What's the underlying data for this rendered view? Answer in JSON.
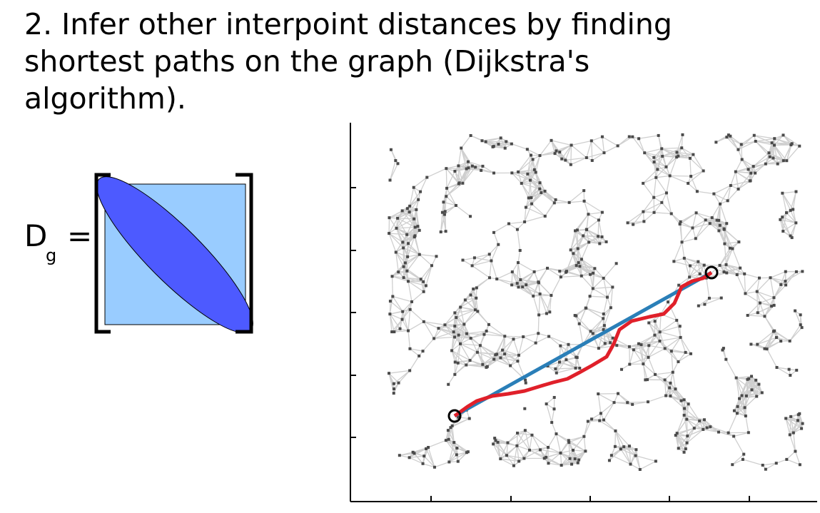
{
  "title": {
    "lines": [
      "2. Infer other interpoint distances by finding",
      "shortest paths on the graph (Dijkstra's",
      "algorithm)."
    ]
  },
  "equation": {
    "symbol": "D",
    "subscript": "g",
    "operator": "="
  }
}
